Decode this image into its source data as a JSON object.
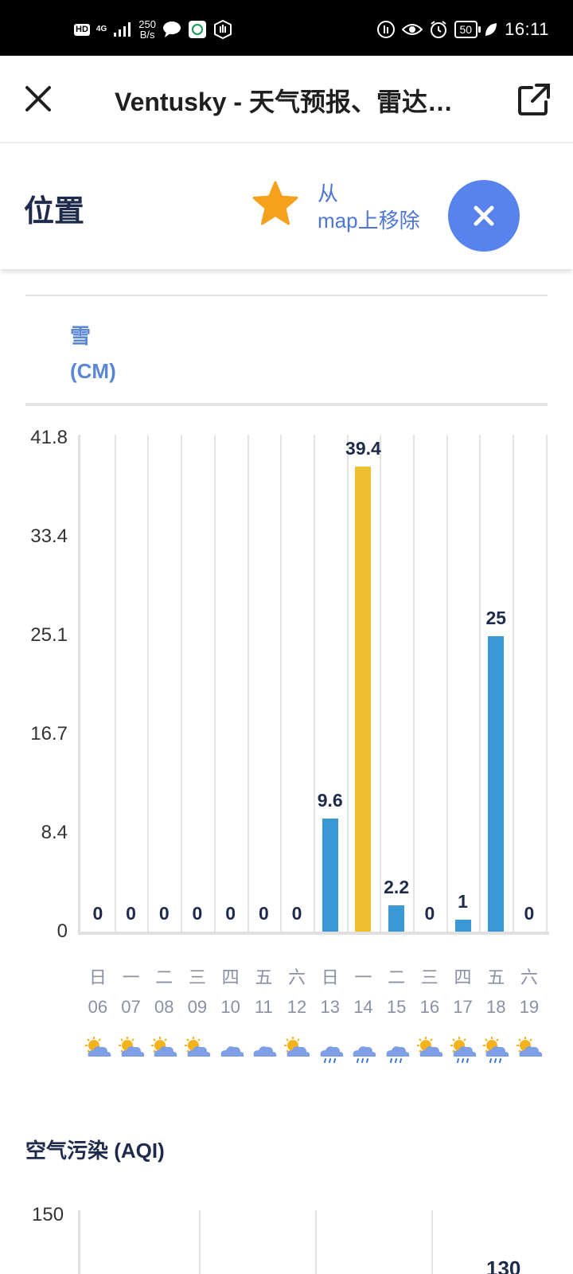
{
  "status_bar": {
    "hd": "HD",
    "network": "4G",
    "speed_value": "250",
    "speed_unit": "B/s",
    "battery": "50",
    "time": "16:11"
  },
  "header": {
    "title": "Ventusky - 天气预报、雷达…"
  },
  "panel": {
    "title": "位置",
    "remove_line1": "从",
    "remove_line2": "map上移除"
  },
  "snow": {
    "label_line1": "雪",
    "label_line2": "(CM)"
  },
  "chart_data": {
    "type": "bar",
    "title": "",
    "ylabel": "雪 (CM)",
    "ylim": [
      0,
      41.8
    ],
    "yticks": [
      "41.8",
      "33.4",
      "25.1",
      "16.7",
      "8.4",
      "0"
    ],
    "highlight_color": "#f0bf31",
    "bar_color": "#3a99d4",
    "categories": [
      {
        "weekday": "日",
        "date": "06",
        "value": 0,
        "label": "0",
        "icon": "sun-cloud-icon"
      },
      {
        "weekday": "一",
        "date": "07",
        "value": 0,
        "label": "0",
        "icon": "sun-cloud-icon"
      },
      {
        "weekday": "二",
        "date": "08",
        "value": 0,
        "label": "0",
        "icon": "sun-cloud-icon"
      },
      {
        "weekday": "三",
        "date": "09",
        "value": 0,
        "label": "0",
        "icon": "sun-cloud-icon"
      },
      {
        "weekday": "四",
        "date": "10",
        "value": 0,
        "label": "0",
        "icon": "cloud-icon"
      },
      {
        "weekday": "五",
        "date": "11",
        "value": 0,
        "label": "0",
        "icon": "cloud-icon"
      },
      {
        "weekday": "六",
        "date": "12",
        "value": 0,
        "label": "0",
        "icon": "sun-cloud-icon"
      },
      {
        "weekday": "日",
        "date": "13",
        "value": 9.6,
        "label": "9.6",
        "icon": "rain-cloud-icon"
      },
      {
        "weekday": "一",
        "date": "14",
        "value": 39.4,
        "label": "39.4",
        "icon": "rain-cloud-icon",
        "highlight": true
      },
      {
        "weekday": "二",
        "date": "15",
        "value": 2.2,
        "label": "2.2",
        "icon": "rain-cloud-icon"
      },
      {
        "weekday": "三",
        "date": "16",
        "value": 0,
        "label": "0",
        "icon": "sun-cloud-icon"
      },
      {
        "weekday": "四",
        "date": "17",
        "value": 1,
        "label": "1",
        "icon": "sun-rain-icon"
      },
      {
        "weekday": "五",
        "date": "18",
        "value": 25,
        "label": "25",
        "icon": "sun-rain-icon"
      },
      {
        "weekday": "六",
        "date": "19",
        "value": 0,
        "label": "0",
        "icon": "sun-cloud-icon"
      }
    ]
  },
  "aqi": {
    "title": "空气污染 (AQI)",
    "tick_top": "150",
    "visible_value": "130"
  }
}
